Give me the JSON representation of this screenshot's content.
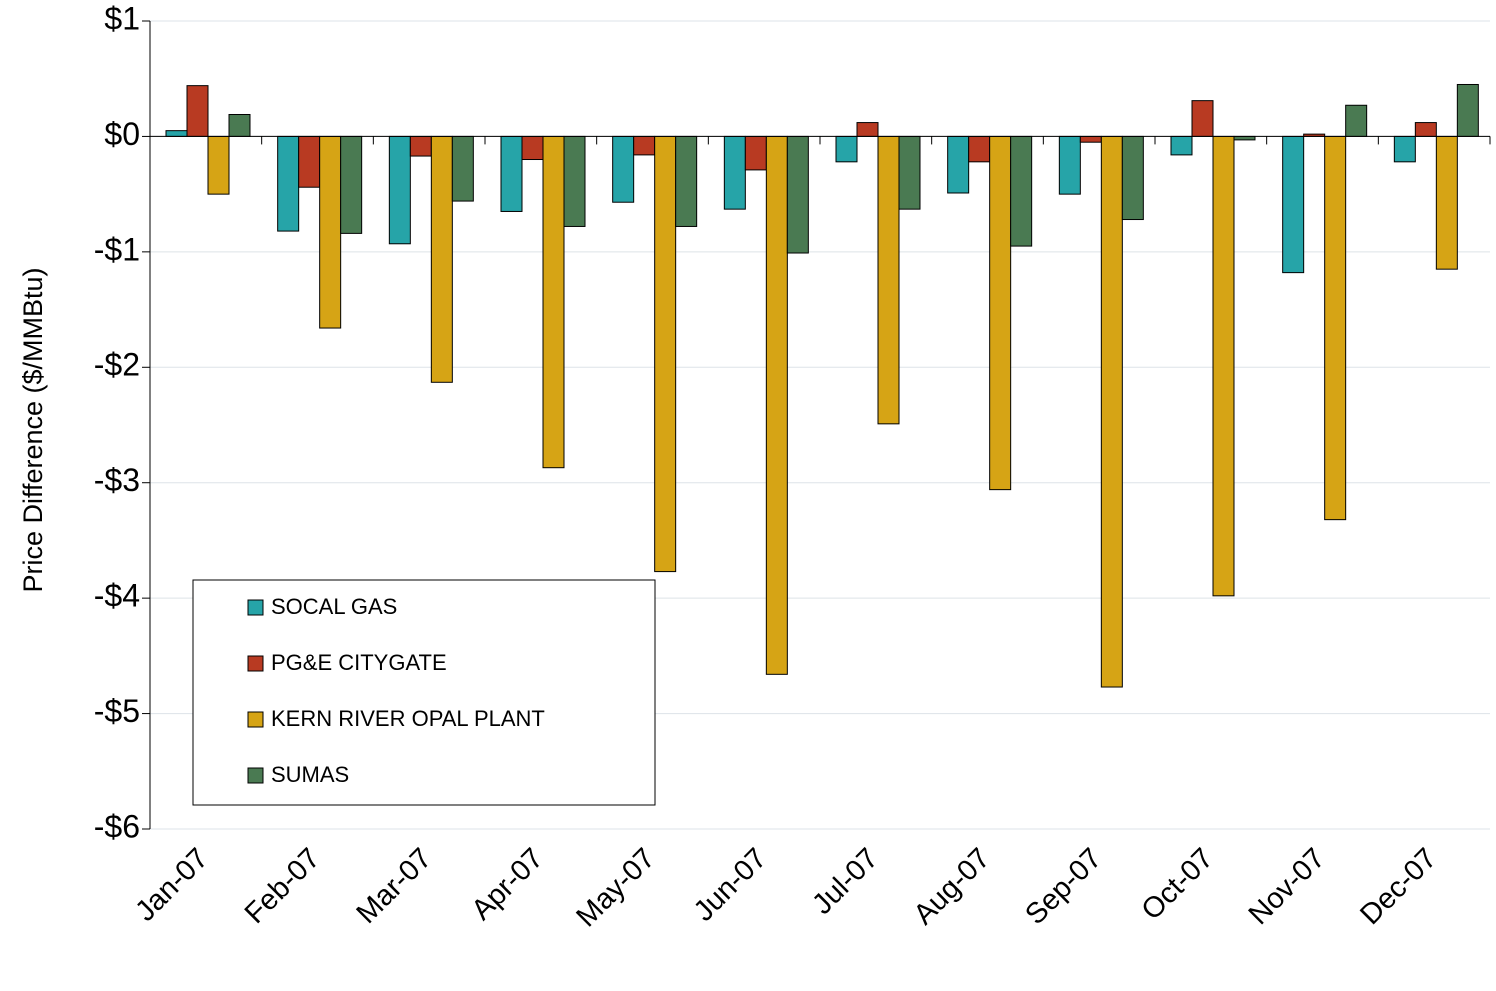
{
  "chart_data": {
    "type": "bar",
    "y_label": "Price Difference  ($/MMBtu)",
    "categories": [
      "Jan-07",
      "Feb-07",
      "Mar-07",
      "Apr-07",
      "May-07",
      "Jun-07",
      "Jul-07",
      "Aug-07",
      "Sep-07",
      "Oct-07",
      "Nov-07",
      "Dec-07"
    ],
    "series": [
      {
        "name": "SOCAL GAS",
        "color": "#26a4a8",
        "values": [
          0.05,
          -0.82,
          -0.93,
          -0.65,
          -0.57,
          -0.63,
          -0.22,
          -0.49,
          -0.5,
          -0.16,
          -1.18,
          -0.22
        ]
      },
      {
        "name": "PG&E CITYGATE",
        "color": "#b83a22",
        "values": [
          0.44,
          -0.44,
          -0.17,
          -0.2,
          -0.16,
          -0.29,
          0.12,
          -0.22,
          -0.05,
          0.31,
          0.02,
          0.12
        ]
      },
      {
        "name": "KERN RIVER OPAL PLANT",
        "color": "#d6a415",
        "values": [
          -0.5,
          -1.66,
          -2.13,
          -2.87,
          -3.77,
          -4.66,
          -2.49,
          -3.06,
          -4.77,
          -3.98,
          -3.32,
          -1.15
        ]
      },
      {
        "name": "SUMAS",
        "color": "#4a7a52",
        "values": [
          0.19,
          -0.84,
          -0.56,
          -0.78,
          -0.78,
          -1.01,
          -0.63,
          -0.95,
          -0.72,
          -0.03,
          0.27,
          0.45
        ]
      }
    ],
    "ylim": [
      -6,
      1
    ],
    "yticks": [
      {
        "value": 1,
        "label": "$1"
      },
      {
        "value": 0,
        "label": "$0"
      },
      {
        "value": -1,
        "label": "-$1"
      },
      {
        "value": -2,
        "label": "-$2"
      },
      {
        "value": -3,
        "label": "-$3"
      },
      {
        "value": -4,
        "label": "-$4"
      },
      {
        "value": -5,
        "label": "-$5"
      },
      {
        "value": -6,
        "label": "-$6"
      }
    ],
    "grid": true,
    "legend": "lower-left"
  }
}
